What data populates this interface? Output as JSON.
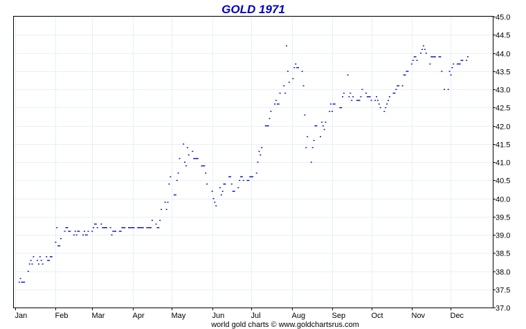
{
  "chart_data": {
    "type": "scatter",
    "title": "GOLD 1971",
    "footer": "world gold charts © www.goldchartsrus.com",
    "ylim": [
      37.0,
      45.0
    ],
    "yticks": [
      37.0,
      37.5,
      38.0,
      38.5,
      39.0,
      39.5,
      40.0,
      40.5,
      41.0,
      41.5,
      42.0,
      42.5,
      43.0,
      43.5,
      44.0,
      44.5,
      45.0
    ],
    "y_axis_side": "right",
    "grid": true,
    "months": [
      "Jan",
      "Feb",
      "Mar",
      "Apr",
      "May",
      "Jun",
      "Jul",
      "Aug",
      "Sep",
      "Oct",
      "Nov",
      "Dec"
    ],
    "series": [
      {
        "color": "#0000cc",
        "points": [
          [
            "Jan 4",
            37.7
          ],
          [
            "Jan 5",
            37.8
          ],
          [
            "Jan 6",
            37.7
          ],
          [
            "Jan 7",
            37.7
          ],
          [
            "Jan 8",
            37.7
          ],
          [
            "Jan 11",
            38.0
          ],
          [
            "Jan 12",
            38.2
          ],
          [
            "Jan 13",
            38.3
          ],
          [
            "Jan 14",
            38.2
          ],
          [
            "Jan 15",
            38.4
          ],
          [
            "Jan 18",
            38.3
          ],
          [
            "Jan 19",
            38.2
          ],
          [
            "Jan 20",
            38.4
          ],
          [
            "Jan 21",
            38.3
          ],
          [
            "Jan 22",
            38.2
          ],
          [
            "Jan 25",
            38.4
          ],
          [
            "Jan 26",
            38.3
          ],
          [
            "Jan 27",
            38.3
          ],
          [
            "Jan 28",
            38.4
          ],
          [
            "Jan 29",
            38.4
          ],
          [
            "Feb 1",
            38.8
          ],
          [
            "Feb 2",
            39.2
          ],
          [
            "Feb 3",
            38.7
          ],
          [
            "Feb 4",
            38.7
          ],
          [
            "Feb 5",
            38.9
          ],
          [
            "Feb 8",
            39.1
          ],
          [
            "Feb 9",
            39.2
          ],
          [
            "Feb 10",
            39.2
          ],
          [
            "Feb 11",
            39.1
          ],
          [
            "Feb 12",
            39.1
          ],
          [
            "Feb 15",
            39.0
          ],
          [
            "Feb 16",
            39.1
          ],
          [
            "Feb 17",
            39.0
          ],
          [
            "Feb 18",
            39.1
          ],
          [
            "Feb 19",
            39.1
          ],
          [
            "Feb 22",
            39.0
          ],
          [
            "Feb 23",
            39.1
          ],
          [
            "Feb 24",
            39.0
          ],
          [
            "Feb 25",
            39.0
          ],
          [
            "Feb 26",
            39.1
          ],
          [
            "Mar 1",
            39.1
          ],
          [
            "Mar 2",
            39.2
          ],
          [
            "Mar 3",
            39.3
          ],
          [
            "Mar 4",
            39.3
          ],
          [
            "Mar 5",
            39.2
          ],
          [
            "Mar 8",
            39.3
          ],
          [
            "Mar 9",
            39.2
          ],
          [
            "Mar 10",
            39.2
          ],
          [
            "Mar 11",
            39.2
          ],
          [
            "Mar 12",
            39.2
          ],
          [
            "Mar 15",
            39.2
          ],
          [
            "Mar 16",
            39.0
          ],
          [
            "Mar 17",
            39.1
          ],
          [
            "Mar 18",
            39.1
          ],
          [
            "Mar 19",
            39.1
          ],
          [
            "Mar 22",
            39.1
          ],
          [
            "Mar 23",
            39.1
          ],
          [
            "Mar 24",
            39.2
          ],
          [
            "Mar 25",
            39.2
          ],
          [
            "Mar 26",
            39.2
          ],
          [
            "Mar 29",
            39.2
          ],
          [
            "Mar 30",
            39.2
          ],
          [
            "Mar 31",
            39.2
          ],
          [
            "Apr 1",
            39.2
          ],
          [
            "Apr 2",
            39.2
          ],
          [
            "Apr 5",
            39.2
          ],
          [
            "Apr 6",
            39.2
          ],
          [
            "Apr 7",
            39.2
          ],
          [
            "Apr 8",
            39.2
          ],
          [
            "Apr 9",
            39.2
          ],
          [
            "Apr 12",
            39.2
          ],
          [
            "Apr 13",
            39.2
          ],
          [
            "Apr 14",
            39.2
          ],
          [
            "Apr 15",
            39.2
          ],
          [
            "Apr 16",
            39.4
          ],
          [
            "Apr 19",
            39.3
          ],
          [
            "Apr 20",
            39.2
          ],
          [
            "Apr 21",
            39.2
          ],
          [
            "Apr 22",
            39.4
          ],
          [
            "Apr 23",
            39.7
          ],
          [
            "Apr 26",
            39.9
          ],
          [
            "Apr 27",
            39.7
          ],
          [
            "Apr 28",
            39.9
          ],
          [
            "Apr 29",
            40.4
          ],
          [
            "Apr 30",
            40.6
          ],
          [
            "May 3",
            40.1
          ],
          [
            "May 4",
            40.1
          ],
          [
            "May 5",
            40.5
          ],
          [
            "May 6",
            40.7
          ],
          [
            "May 7",
            41.1
          ],
          [
            "May 10",
            41.5
          ],
          [
            "May 11",
            41.0
          ],
          [
            "May 12",
            40.9
          ],
          [
            "May 13",
            41.4
          ],
          [
            "May 14",
            41.2
          ],
          [
            "May 17",
            41.3
          ],
          [
            "May 18",
            41.1
          ],
          [
            "May 19",
            41.1
          ],
          [
            "May 20",
            41.1
          ],
          [
            "May 21",
            41.1
          ],
          [
            "May 24",
            40.9
          ],
          [
            "May 25",
            40.9
          ],
          [
            "May 26",
            40.9
          ],
          [
            "May 27",
            40.7
          ],
          [
            "May 28",
            40.4
          ],
          [
            "Jun 1",
            40.2
          ],
          [
            "Jun 2",
            40.0
          ],
          [
            "Jun 3",
            39.9
          ],
          [
            "Jun 4",
            39.8
          ],
          [
            "Jun 7",
            40.3
          ],
          [
            "Jun 8",
            40.1
          ],
          [
            "Jun 9",
            40.2
          ],
          [
            "Jun 10",
            40.4
          ],
          [
            "Jun 11",
            40.4
          ],
          [
            "Jun 14",
            40.6
          ],
          [
            "Jun 15",
            40.6
          ],
          [
            "Jun 16",
            40.4
          ],
          [
            "Jun 17",
            40.2
          ],
          [
            "Jun 18",
            40.2
          ],
          [
            "Jun 21",
            40.3
          ],
          [
            "Jun 22",
            40.5
          ],
          [
            "Jun 23",
            40.6
          ],
          [
            "Jun 24",
            40.6
          ],
          [
            "Jun 25",
            40.5
          ],
          [
            "Jun 28",
            40.5
          ],
          [
            "Jun 29",
            40.5
          ],
          [
            "Jun 30",
            40.6
          ],
          [
            "Jul 1",
            40.6
          ],
          [
            "Jul 2",
            40.6
          ],
          [
            "Jul 5",
            40.7
          ],
          [
            "Jul 6",
            41.0
          ],
          [
            "Jul 7",
            41.3
          ],
          [
            "Jul 8",
            41.2
          ],
          [
            "Jul 9",
            41.4
          ],
          [
            "Jul 12",
            42.0
          ],
          [
            "Jul 13",
            42.0
          ],
          [
            "Jul 14",
            42.0
          ],
          [
            "Jul 15",
            42.2
          ],
          [
            "Jul 16",
            42.4
          ],
          [
            "Jul 19",
            42.6
          ],
          [
            "Jul 20",
            42.7
          ],
          [
            "Jul 21",
            42.6
          ],
          [
            "Jul 22",
            42.6
          ],
          [
            "Jul 23",
            42.9
          ],
          [
            "Jul 26",
            43.1
          ],
          [
            "Jul 27",
            42.9
          ],
          [
            "Jul 28",
            44.2
          ],
          [
            "Jul 29",
            43.5
          ],
          [
            "Jul 30",
            43.2
          ],
          [
            "Aug 2",
            43.3
          ],
          [
            "Aug 3",
            43.6
          ],
          [
            "Aug 4",
            43.7
          ],
          [
            "Aug 5",
            43.6
          ],
          [
            "Aug 6",
            43.6
          ],
          [
            "Aug 9",
            43.5
          ],
          [
            "Aug 10",
            43.1
          ],
          [
            "Aug 11",
            42.3
          ],
          [
            "Aug 12",
            41.4
          ],
          [
            "Aug 13",
            41.7
          ],
          [
            "Aug 16",
            41.0
          ],
          [
            "Aug 17",
            41.4
          ],
          [
            "Aug 18",
            41.6
          ],
          [
            "Aug 19",
            42.0
          ],
          [
            "Aug 20",
            42.0
          ],
          [
            "Aug 23",
            41.7
          ],
          [
            "Aug 24",
            42.1
          ],
          [
            "Aug 25",
            42.0
          ],
          [
            "Aug 26",
            41.9
          ],
          [
            "Aug 27",
            42.1
          ],
          [
            "Aug 30",
            42.4
          ],
          [
            "Aug 31",
            42.6
          ],
          [
            "Sep 1",
            42.4
          ],
          [
            "Sep 2",
            42.6
          ],
          [
            "Sep 3",
            42.6
          ],
          [
            "Sep 7",
            42.5
          ],
          [
            "Sep 8",
            42.5
          ],
          [
            "Sep 9",
            42.8
          ],
          [
            "Sep 10",
            42.9
          ],
          [
            "Sep 13",
            43.4
          ],
          [
            "Sep 14",
            42.8
          ],
          [
            "Sep 15",
            42.9
          ],
          [
            "Sep 16",
            42.7
          ],
          [
            "Sep 17",
            42.8
          ],
          [
            "Sep 20",
            42.7
          ],
          [
            "Sep 21",
            42.7
          ],
          [
            "Sep 22",
            42.7
          ],
          [
            "Sep 23",
            42.8
          ],
          [
            "Sep 24",
            43.0
          ],
          [
            "Sep 27",
            42.9
          ],
          [
            "Sep 28",
            42.8
          ],
          [
            "Sep 29",
            42.8
          ],
          [
            "Sep 30",
            42.8
          ],
          [
            "Oct 1",
            42.7
          ],
          [
            "Oct 4",
            42.7
          ],
          [
            "Oct 5",
            42.8
          ],
          [
            "Oct 6",
            42.7
          ],
          [
            "Oct 7",
            42.6
          ],
          [
            "Oct 8",
            42.5
          ],
          [
            "Oct 11",
            42.4
          ],
          [
            "Oct 12",
            42.5
          ],
          [
            "Oct 13",
            42.6
          ],
          [
            "Oct 14",
            42.7
          ],
          [
            "Oct 15",
            42.8
          ],
          [
            "Oct 18",
            42.9
          ],
          [
            "Oct 19",
            42.9
          ],
          [
            "Oct 20",
            43.0
          ],
          [
            "Oct 21",
            43.1
          ],
          [
            "Oct 22",
            43.1
          ],
          [
            "Oct 25",
            43.1
          ],
          [
            "Oct 26",
            43.4
          ],
          [
            "Oct 27",
            43.4
          ],
          [
            "Oct 28",
            43.5
          ],
          [
            "Oct 29",
            43.5
          ],
          [
            "Nov 1",
            43.7
          ],
          [
            "Nov 2",
            43.8
          ],
          [
            "Nov 3",
            43.9
          ],
          [
            "Nov 4",
            43.9
          ],
          [
            "Nov 5",
            43.8
          ],
          [
            "Nov 8",
            44.0
          ],
          [
            "Nov 9",
            44.1
          ],
          [
            "Nov 10",
            44.2
          ],
          [
            "Nov 11",
            44.1
          ],
          [
            "Nov 12",
            44.0
          ],
          [
            "Nov 15",
            43.7
          ],
          [
            "Nov 16",
            43.9
          ],
          [
            "Nov 17",
            43.9
          ],
          [
            "Nov 18",
            43.9
          ],
          [
            "Nov 19",
            43.9
          ],
          [
            "Nov 22",
            43.9
          ],
          [
            "Nov 23",
            43.9
          ],
          [
            "Nov 24",
            43.5
          ],
          [
            "Nov 26",
            43.0
          ],
          [
            "Nov 29",
            43.0
          ],
          [
            "Nov 30",
            43.5
          ],
          [
            "Dec 1",
            43.4
          ],
          [
            "Dec 2",
            43.6
          ],
          [
            "Dec 3",
            43.7
          ],
          [
            "Dec 6",
            43.7
          ],
          [
            "Dec 7",
            43.7
          ],
          [
            "Dec 8",
            43.7
          ],
          [
            "Dec 9",
            43.8
          ],
          [
            "Dec 10",
            43.8
          ],
          [
            "Dec 13",
            43.8
          ],
          [
            "Dec 14",
            43.9
          ]
        ]
      }
    ]
  }
}
